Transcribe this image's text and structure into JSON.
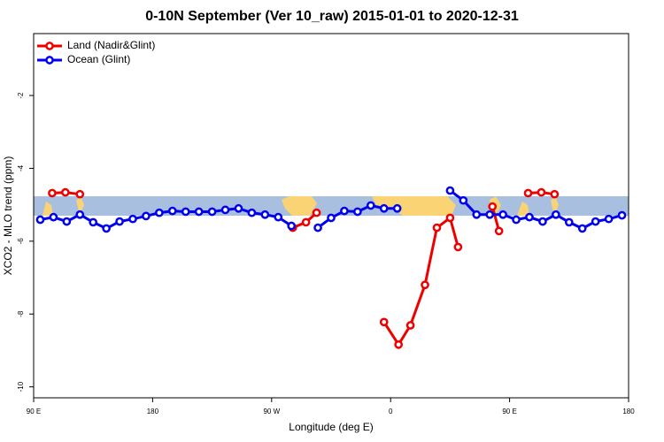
{
  "chart_data": {
    "type": "line",
    "title": "0-10N September (Ver 10_raw)   2015-01-01 to 2020-12-31",
    "x_label": "Longitude (deg E)",
    "y_label": "XCO2 - MLO trend (ppm)",
    "xlim": [
      90,
      540
    ],
    "xticks": [
      {
        "value": 90,
        "label": "90 E"
      },
      {
        "value": 180,
        "label": "180"
      },
      {
        "value": 270,
        "label": "90 W"
      },
      {
        "value": 360,
        "label": "0"
      },
      {
        "value": 450,
        "label": "90 E"
      },
      {
        "value": 540,
        "label": "180"
      }
    ],
    "ylim": [
      -10.3,
      -0.3
    ],
    "yticks": [
      -10,
      -8,
      -6,
      -4,
      -2
    ],
    "legend": "top-left",
    "series": [
      {
        "name": "Land (Nadir&Glint)",
        "color": "#ee0000",
        "x": [
          104,
          114,
          125,
          null,
          286,
          296,
          304,
          null,
          355,
          366,
          375,
          386,
          395,
          405,
          411,
          null,
          437,
          442,
          null,
          464,
          474,
          484
        ],
        "values": [
          -4.68,
          -4.66,
          -4.71,
          null,
          -5.63,
          -5.48,
          -5.22,
          null,
          -8.22,
          -8.84,
          -8.31,
          -7.2,
          -5.63,
          -5.36,
          -6.16,
          null,
          -5.05,
          -5.72,
          null,
          -4.68,
          -4.66,
          -4.71
        ]
      },
      {
        "name": "Ocean (Glint)",
        "color": "#0000ee",
        "x": [
          95,
          105,
          115,
          125,
          135,
          145,
          155,
          165,
          175,
          185,
          195,
          205,
          215,
          225,
          235,
          245,
          255,
          265,
          275,
          285,
          295,
          305,
          315,
          325,
          335,
          345,
          355,
          365,
          375,
          405,
          415,
          425,
          435,
          445,
          455,
          465,
          475,
          485,
          495,
          505,
          515,
          525,
          535
        ],
        "values": [
          -5.41,
          -5.34,
          -5.46,
          -5.27,
          -5.48,
          -5.65,
          -5.46,
          -5.39,
          -5.31,
          -5.22,
          -5.17,
          -5.19,
          -5.19,
          -5.19,
          -5.14,
          -5.1,
          -5.22,
          -5.27,
          -5.34,
          -5.58,
          null,
          -5.63,
          -5.36,
          -5.17,
          -5.19,
          -5.02,
          -5.1,
          -5.1,
          null,
          -4.61,
          -4.88,
          -5.27,
          -5.27,
          -5.27,
          -5.41,
          -5.34,
          -5.46,
          -5.27,
          -5.48,
          -5.65,
          -5.46,
          -5.39,
          -5.29
        ]
      }
    ]
  }
}
